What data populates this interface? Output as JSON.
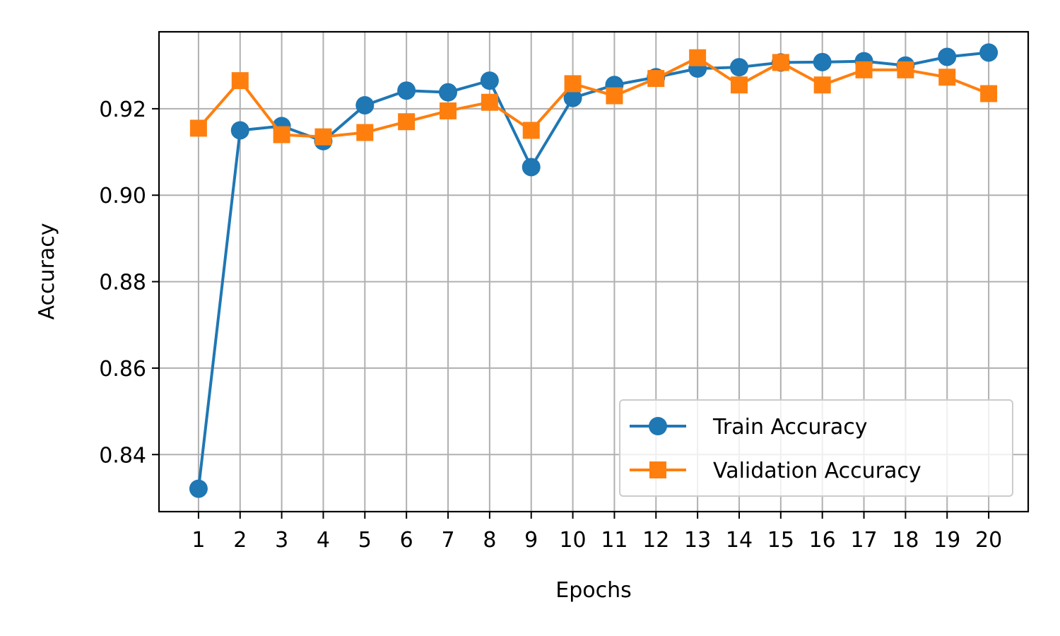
{
  "chart_data": {
    "type": "line",
    "title": "",
    "xlabel": "Epochs",
    "ylabel": "Accuracy",
    "x": [
      1,
      2,
      3,
      4,
      5,
      6,
      7,
      8,
      9,
      10,
      11,
      12,
      13,
      14,
      15,
      16,
      17,
      18,
      19,
      20
    ],
    "x_tick_labels": [
      "1",
      "2",
      "3",
      "4",
      "5",
      "6",
      "7",
      "8",
      "9",
      "10",
      "11",
      "12",
      "13",
      "14",
      "15",
      "16",
      "17",
      "18",
      "19",
      "20"
    ],
    "y_ticks": [
      0.84,
      0.86,
      0.88,
      0.9,
      0.92
    ],
    "y_tick_labels": [
      "0.84",
      "0.86",
      "0.88",
      "0.90",
      "0.92"
    ],
    "xlim": [
      0.05,
      20.95
    ],
    "ylim": [
      0.8268,
      0.9378
    ],
    "grid": true,
    "legend_position": "lower-right",
    "series": [
      {
        "name": "Train Accuracy",
        "color": "#1f77b4",
        "marker": "circle",
        "values": [
          0.8321,
          0.915,
          0.916,
          0.9125,
          0.9208,
          0.9242,
          0.9238,
          0.9265,
          0.9065,
          0.9225,
          0.9255,
          0.9273,
          0.9293,
          0.9296,
          0.9307,
          0.9308,
          0.931,
          0.93,
          0.932,
          0.933
        ]
      },
      {
        "name": "Validation Accuracy",
        "color": "#ff7f0e",
        "marker": "square",
        "values": [
          0.9155,
          0.9265,
          0.914,
          0.9135,
          0.9145,
          0.917,
          0.9195,
          0.9215,
          0.915,
          0.9258,
          0.923,
          0.927,
          0.9318,
          0.9255,
          0.9307,
          0.9255,
          0.929,
          0.929,
          0.9273,
          0.9235
        ]
      }
    ]
  }
}
